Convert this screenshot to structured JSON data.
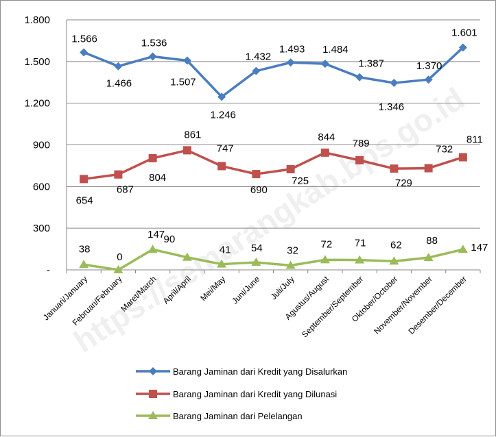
{
  "chart_data": {
    "type": "line",
    "categories": [
      "Januari/January",
      "Februari/February",
      "Maret/March",
      "April/April",
      "Mei/May",
      "Juni/June",
      "Juli/July",
      "Agustus/August",
      "September/September",
      "Oktober/October",
      "November/November",
      "Desember/December"
    ],
    "ylim": [
      0,
      1800
    ],
    "yticks": [
      "-",
      "300",
      "600",
      "900",
      "1.200",
      "1.500",
      "1.800"
    ],
    "grid": true,
    "legend_position": "bottom",
    "series": [
      {
        "name": "Barang Jaminan dari Kredit yang Disalurkan",
        "color": "#4a7dbf",
        "marker": "diamond",
        "values": [
          1566,
          1466,
          1536,
          1507,
          1246,
          1432,
          1493,
          1484,
          1387,
          1346,
          1370,
          1601
        ],
        "labels": [
          "1.566",
          "1.466",
          "1.536",
          "1.507",
          "1.246",
          "1.432",
          "1.493",
          "1.484",
          "1.387",
          "1.346",
          "1.370",
          "1.601"
        ]
      },
      {
        "name": "Barang Jaminan dari Kredit yang Dilunasi",
        "color": "#c0504d",
        "marker": "square",
        "values": [
          654,
          687,
          804,
          861,
          747,
          690,
          725,
          844,
          789,
          729,
          732,
          811
        ],
        "labels": [
          "654",
          "687",
          "804",
          "861",
          "747",
          "690",
          "725",
          "844",
          "789",
          "729",
          "732",
          "811"
        ]
      },
      {
        "name": "Barang Jaminan dari Pelelangan",
        "color": "#9bbb59",
        "marker": "triangle",
        "values": [
          38,
          0,
          147,
          90,
          41,
          54,
          32,
          72,
          71,
          62,
          88,
          147
        ],
        "labels": [
          "38",
          "0",
          "147",
          "90",
          "41",
          "54",
          "32",
          "72",
          "71",
          "62",
          "88",
          "147"
        ]
      }
    ],
    "watermark": "https://semarangkab.bps.go.id"
  }
}
